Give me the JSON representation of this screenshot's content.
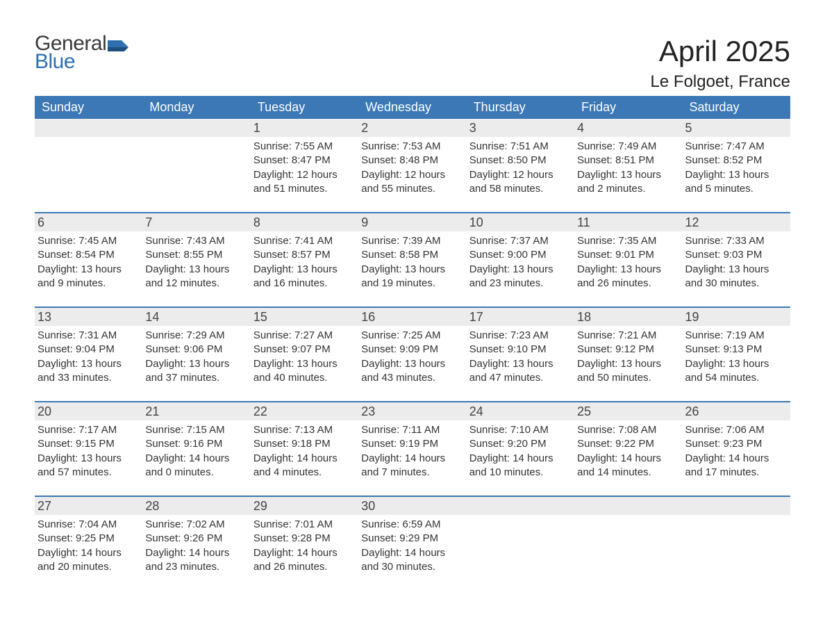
{
  "brand": {
    "line1": "General",
    "line2": "Blue"
  },
  "title": {
    "month": "April 2025",
    "location": "Le Folgoet, France"
  },
  "colors": {
    "header_bg": "#3b78b5",
    "header_text": "#ffffff",
    "row_rule": "#3b78b5",
    "numstrip_bg": "#ececec",
    "body_text": "#333333",
    "logo_blue": "#2f6fb0",
    "logo_gray": "#3a3a3a",
    "page_bg": "#ffffff"
  },
  "typography": {
    "month_fontsize_pt": 32,
    "location_fontsize_pt": 18,
    "dow_fontsize_pt": 14,
    "daynum_fontsize_pt": 14,
    "body_fontsize_pt": 11,
    "logo_fontsize_pt": 22
  },
  "dow": [
    "Sunday",
    "Monday",
    "Tuesday",
    "Wednesday",
    "Thursday",
    "Friday",
    "Saturday"
  ],
  "weeks": [
    [
      null,
      null,
      {
        "n": "1",
        "sr": "Sunrise: 7:55 AM",
        "ss": "Sunset: 8:47 PM",
        "d1": "Daylight: 12 hours",
        "d2": "and 51 minutes."
      },
      {
        "n": "2",
        "sr": "Sunrise: 7:53 AM",
        "ss": "Sunset: 8:48 PM",
        "d1": "Daylight: 12 hours",
        "d2": "and 55 minutes."
      },
      {
        "n": "3",
        "sr": "Sunrise: 7:51 AM",
        "ss": "Sunset: 8:50 PM",
        "d1": "Daylight: 12 hours",
        "d2": "and 58 minutes."
      },
      {
        "n": "4",
        "sr": "Sunrise: 7:49 AM",
        "ss": "Sunset: 8:51 PM",
        "d1": "Daylight: 13 hours",
        "d2": "and 2 minutes."
      },
      {
        "n": "5",
        "sr": "Sunrise: 7:47 AM",
        "ss": "Sunset: 8:52 PM",
        "d1": "Daylight: 13 hours",
        "d2": "and 5 minutes."
      }
    ],
    [
      {
        "n": "6",
        "sr": "Sunrise: 7:45 AM",
        "ss": "Sunset: 8:54 PM",
        "d1": "Daylight: 13 hours",
        "d2": "and 9 minutes."
      },
      {
        "n": "7",
        "sr": "Sunrise: 7:43 AM",
        "ss": "Sunset: 8:55 PM",
        "d1": "Daylight: 13 hours",
        "d2": "and 12 minutes."
      },
      {
        "n": "8",
        "sr": "Sunrise: 7:41 AM",
        "ss": "Sunset: 8:57 PM",
        "d1": "Daylight: 13 hours",
        "d2": "and 16 minutes."
      },
      {
        "n": "9",
        "sr": "Sunrise: 7:39 AM",
        "ss": "Sunset: 8:58 PM",
        "d1": "Daylight: 13 hours",
        "d2": "and 19 minutes."
      },
      {
        "n": "10",
        "sr": "Sunrise: 7:37 AM",
        "ss": "Sunset: 9:00 PM",
        "d1": "Daylight: 13 hours",
        "d2": "and 23 minutes."
      },
      {
        "n": "11",
        "sr": "Sunrise: 7:35 AM",
        "ss": "Sunset: 9:01 PM",
        "d1": "Daylight: 13 hours",
        "d2": "and 26 minutes."
      },
      {
        "n": "12",
        "sr": "Sunrise: 7:33 AM",
        "ss": "Sunset: 9:03 PM",
        "d1": "Daylight: 13 hours",
        "d2": "and 30 minutes."
      }
    ],
    [
      {
        "n": "13",
        "sr": "Sunrise: 7:31 AM",
        "ss": "Sunset: 9:04 PM",
        "d1": "Daylight: 13 hours",
        "d2": "and 33 minutes."
      },
      {
        "n": "14",
        "sr": "Sunrise: 7:29 AM",
        "ss": "Sunset: 9:06 PM",
        "d1": "Daylight: 13 hours",
        "d2": "and 37 minutes."
      },
      {
        "n": "15",
        "sr": "Sunrise: 7:27 AM",
        "ss": "Sunset: 9:07 PM",
        "d1": "Daylight: 13 hours",
        "d2": "and 40 minutes."
      },
      {
        "n": "16",
        "sr": "Sunrise: 7:25 AM",
        "ss": "Sunset: 9:09 PM",
        "d1": "Daylight: 13 hours",
        "d2": "and 43 minutes."
      },
      {
        "n": "17",
        "sr": "Sunrise: 7:23 AM",
        "ss": "Sunset: 9:10 PM",
        "d1": "Daylight: 13 hours",
        "d2": "and 47 minutes."
      },
      {
        "n": "18",
        "sr": "Sunrise: 7:21 AM",
        "ss": "Sunset: 9:12 PM",
        "d1": "Daylight: 13 hours",
        "d2": "and 50 minutes."
      },
      {
        "n": "19",
        "sr": "Sunrise: 7:19 AM",
        "ss": "Sunset: 9:13 PM",
        "d1": "Daylight: 13 hours",
        "d2": "and 54 minutes."
      }
    ],
    [
      {
        "n": "20",
        "sr": "Sunrise: 7:17 AM",
        "ss": "Sunset: 9:15 PM",
        "d1": "Daylight: 13 hours",
        "d2": "and 57 minutes."
      },
      {
        "n": "21",
        "sr": "Sunrise: 7:15 AM",
        "ss": "Sunset: 9:16 PM",
        "d1": "Daylight: 14 hours",
        "d2": "and 0 minutes."
      },
      {
        "n": "22",
        "sr": "Sunrise: 7:13 AM",
        "ss": "Sunset: 9:18 PM",
        "d1": "Daylight: 14 hours",
        "d2": "and 4 minutes."
      },
      {
        "n": "23",
        "sr": "Sunrise: 7:11 AM",
        "ss": "Sunset: 9:19 PM",
        "d1": "Daylight: 14 hours",
        "d2": "and 7 minutes."
      },
      {
        "n": "24",
        "sr": "Sunrise: 7:10 AM",
        "ss": "Sunset: 9:20 PM",
        "d1": "Daylight: 14 hours",
        "d2": "and 10 minutes."
      },
      {
        "n": "25",
        "sr": "Sunrise: 7:08 AM",
        "ss": "Sunset: 9:22 PM",
        "d1": "Daylight: 14 hours",
        "d2": "and 14 minutes."
      },
      {
        "n": "26",
        "sr": "Sunrise: 7:06 AM",
        "ss": "Sunset: 9:23 PM",
        "d1": "Daylight: 14 hours",
        "d2": "and 17 minutes."
      }
    ],
    [
      {
        "n": "27",
        "sr": "Sunrise: 7:04 AM",
        "ss": "Sunset: 9:25 PM",
        "d1": "Daylight: 14 hours",
        "d2": "and 20 minutes."
      },
      {
        "n": "28",
        "sr": "Sunrise: 7:02 AM",
        "ss": "Sunset: 9:26 PM",
        "d1": "Daylight: 14 hours",
        "d2": "and 23 minutes."
      },
      {
        "n": "29",
        "sr": "Sunrise: 7:01 AM",
        "ss": "Sunset: 9:28 PM",
        "d1": "Daylight: 14 hours",
        "d2": "and 26 minutes."
      },
      {
        "n": "30",
        "sr": "Sunrise: 6:59 AM",
        "ss": "Sunset: 9:29 PM",
        "d1": "Daylight: 14 hours",
        "d2": "and 30 minutes."
      },
      null,
      null,
      null
    ]
  ]
}
